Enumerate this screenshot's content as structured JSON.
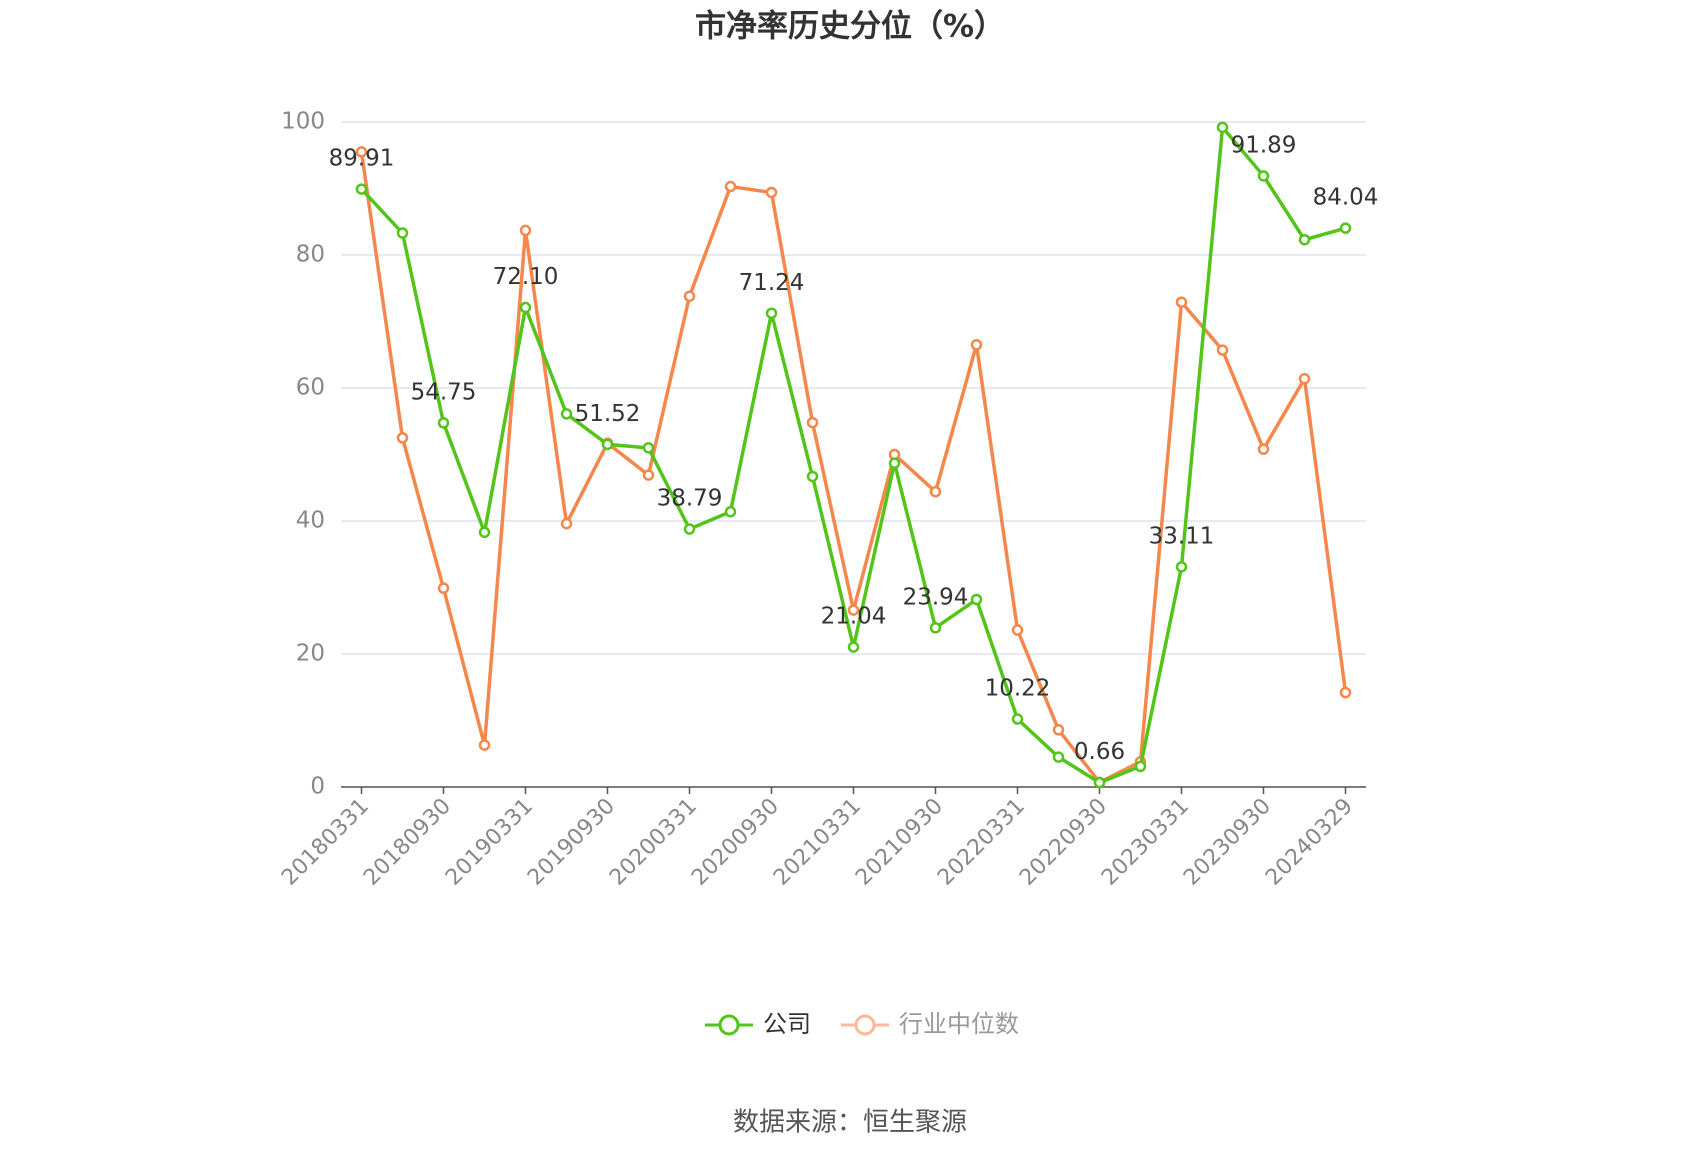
{
  "chart_data": {
    "type": "line",
    "title": "市净率历史分位（%）",
    "categories": [
      "20180331",
      null,
      "20180930",
      null,
      "20190331",
      null,
      "20190930",
      null,
      "20200331",
      null,
      "20200930",
      null,
      "20210331",
      null,
      "20210930",
      null,
      "20220331",
      null,
      "20220930",
      null,
      "20230331",
      null,
      "20230930",
      null,
      "20240329"
    ],
    "series": [
      {
        "name": "公司",
        "color": "#52c41a",
        "values": [
          89.91,
          83.3,
          54.75,
          38.3,
          72.1,
          56.1,
          51.52,
          51.0,
          38.79,
          41.4,
          71.24,
          46.7,
          21.04,
          48.7,
          23.94,
          28.2,
          10.22,
          4.5,
          0.66,
          3.1,
          33.11,
          99.2,
          91.89,
          82.3,
          84.04
        ],
        "value_labels": [
          "89.91",
          null,
          "54.75",
          null,
          "72.10",
          null,
          "51.52",
          null,
          "38.79",
          null,
          "71.24",
          null,
          "21.04",
          null,
          "23.94",
          null,
          "10.22",
          null,
          "0.66",
          null,
          "33.11",
          null,
          "91.89",
          null,
          "84.04"
        ]
      },
      {
        "name": "行业中位数",
        "color": "#f4874b",
        "values": [
          95.5,
          52.5,
          29.9,
          6.3,
          83.7,
          39.6,
          51.7,
          46.9,
          73.8,
          90.3,
          89.4,
          54.8,
          26.6,
          50.0,
          44.4,
          66.5,
          23.6,
          8.6,
          0.7,
          3.8,
          72.9,
          65.7,
          50.8,
          61.4,
          14.2
        ]
      }
    ],
    "ylim": [
      0,
      100
    ],
    "yticks": [
      0,
      20,
      40,
      60,
      80,
      100
    ],
    "grid": true,
    "source": "数据来源：恒生聚源"
  }
}
